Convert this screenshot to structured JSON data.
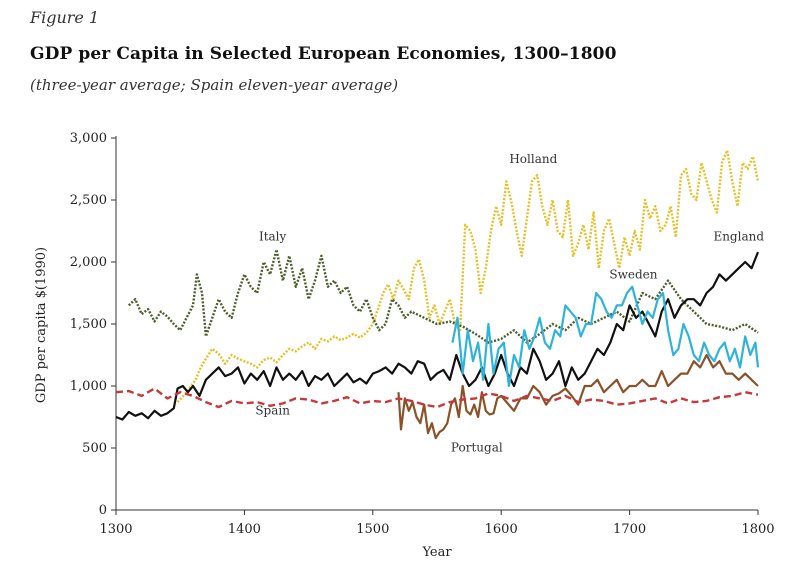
{
  "figure": {
    "label": "Figure 1",
    "title": "GDP per Capita in Selected European Economies, 1300–1800",
    "subtitle": "(three-year average; Spain eleven-year average)"
  },
  "chart_data": {
    "type": "line",
    "title": "GDP per Capita in Selected European Economies, 1300–1800",
    "xlabel": "Year",
    "ylabel": "GDP per capita $(1990)",
    "xlim": [
      1300,
      1800
    ],
    "ylim": [
      0,
      3000
    ],
    "xticks": [
      1300,
      1400,
      1500,
      1600,
      1700,
      1800
    ],
    "yticks": [
      0,
      500,
      1000,
      1500,
      2000,
      2500,
      3000
    ],
    "xtick_labels": [
      "1300",
      "1400",
      "1500",
      "1600",
      "1700",
      "1800"
    ],
    "ytick_labels": [
      "0",
      "500",
      "1,000",
      "1,500",
      "2,000",
      "2,500",
      "3,000"
    ],
    "grid": false,
    "series": [
      {
        "name": "Holland",
        "color": "#e6c02a",
        "style": "dotted",
        "label_pos": [
          1625,
          2800
        ],
        "x": [
          1348,
          1355,
          1362,
          1366,
          1370,
          1375,
          1380,
          1385,
          1390,
          1395,
          1400,
          1405,
          1410,
          1415,
          1420,
          1425,
          1430,
          1435,
          1440,
          1445,
          1450,
          1455,
          1460,
          1465,
          1470,
          1475,
          1480,
          1485,
          1490,
          1495,
          1500,
          1505,
          1508,
          1512,
          1516,
          1520,
          1524,
          1528,
          1532,
          1536,
          1540,
          1544,
          1548,
          1552,
          1556,
          1560,
          1564,
          1568,
          1572,
          1576,
          1580,
          1584,
          1588,
          1592,
          1596,
          1600,
          1604,
          1608,
          1612,
          1616,
          1620,
          1624,
          1628,
          1632,
          1636,
          1640,
          1644,
          1648,
          1652,
          1656,
          1660,
          1664,
          1668,
          1672,
          1676,
          1680,
          1684,
          1688,
          1692,
          1696,
          1700,
          1704,
          1708,
          1712,
          1716,
          1720,
          1724,
          1728,
          1732,
          1736,
          1740,
          1744,
          1748,
          1752,
          1756,
          1760,
          1764,
          1768,
          1772,
          1776,
          1780,
          1784,
          1788,
          1792,
          1796,
          1800
        ],
        "values": [
          870,
          950,
          1050,
          1150,
          1220,
          1300,
          1260,
          1180,
          1250,
          1220,
          1200,
          1180,
          1150,
          1210,
          1230,
          1190,
          1250,
          1300,
          1280,
          1320,
          1350,
          1300,
          1380,
          1360,
          1400,
          1370,
          1390,
          1420,
          1390,
          1430,
          1500,
          1650,
          1750,
          1820,
          1700,
          1850,
          1780,
          1700,
          1950,
          2020,
          1850,
          1550,
          1650,
          1500,
          1600,
          1700,
          1500,
          1450,
          2300,
          2250,
          2100,
          1750,
          1950,
          2250,
          2450,
          2300,
          2650,
          2480,
          2250,
          2050,
          2350,
          2650,
          2700,
          2450,
          2300,
          2500,
          2250,
          2200,
          2500,
          2050,
          2150,
          2300,
          2100,
          2400,
          1950,
          2250,
          2350,
          2150,
          1950,
          2200,
          2050,
          2250,
          2100,
          2500,
          2350,
          2450,
          2250,
          2300,
          2450,
          2200,
          2700,
          2750,
          2550,
          2500,
          2800,
          2650,
          2500,
          2400,
          2800,
          2900,
          2650,
          2450,
          2800,
          2750,
          2850,
          2650
        ]
      },
      {
        "name": "Italy",
        "color": "#4a5e2a",
        "style": "dotted",
        "label_pos": [
          1422,
          2175
        ],
        "x": [
          1310,
          1315,
          1320,
          1325,
          1330,
          1335,
          1340,
          1345,
          1350,
          1355,
          1360,
          1363,
          1367,
          1370,
          1375,
          1380,
          1385,
          1390,
          1395,
          1400,
          1405,
          1410,
          1415,
          1420,
          1425,
          1430,
          1435,
          1440,
          1445,
          1450,
          1455,
          1460,
          1465,
          1470,
          1475,
          1480,
          1485,
          1490,
          1495,
          1500,
          1505,
          1510,
          1515,
          1520,
          1525,
          1530,
          1540,
          1550,
          1560,
          1570,
          1580,
          1590,
          1600,
          1610,
          1620,
          1630,
          1640,
          1650,
          1660,
          1670,
          1680,
          1690,
          1700,
          1710,
          1720,
          1730,
          1740,
          1750,
          1760,
          1770,
          1780,
          1790,
          1800
        ],
        "values": [
          1650,
          1700,
          1580,
          1620,
          1520,
          1600,
          1560,
          1500,
          1450,
          1550,
          1650,
          1900,
          1750,
          1400,
          1550,
          1700,
          1600,
          1550,
          1750,
          1900,
          1800,
          1750,
          2000,
          1900,
          2100,
          1850,
          2050,
          1800,
          1950,
          1700,
          1850,
          2050,
          1800,
          1850,
          1750,
          1800,
          1650,
          1600,
          1700,
          1550,
          1450,
          1500,
          1700,
          1650,
          1550,
          1600,
          1550,
          1500,
          1520,
          1480,
          1420,
          1350,
          1380,
          1450,
          1350,
          1420,
          1500,
          1450,
          1550,
          1500,
          1550,
          1600,
          1520,
          1750,
          1700,
          1850,
          1700,
          1600,
          1500,
          1480,
          1450,
          1500,
          1430
        ]
      },
      {
        "name": "England",
        "color": "#111111",
        "style": "solid",
        "label_pos": [
          1785,
          2175
        ],
        "x": [
          1300,
          1305,
          1310,
          1315,
          1320,
          1325,
          1330,
          1335,
          1340,
          1345,
          1348,
          1352,
          1356,
          1360,
          1365,
          1370,
          1375,
          1380,
          1385,
          1390,
          1395,
          1400,
          1405,
          1410,
          1415,
          1420,
          1425,
          1430,
          1435,
          1440,
          1445,
          1450,
          1455,
          1460,
          1465,
          1470,
          1475,
          1480,
          1485,
          1490,
          1495,
          1500,
          1505,
          1510,
          1515,
          1520,
          1525,
          1530,
          1535,
          1540,
          1545,
          1550,
          1555,
          1560,
          1565,
          1570,
          1575,
          1580,
          1585,
          1590,
          1595,
          1600,
          1605,
          1610,
          1615,
          1620,
          1625,
          1630,
          1635,
          1640,
          1645,
          1650,
          1655,
          1660,
          1665,
          1670,
          1675,
          1680,
          1685,
          1690,
          1695,
          1700,
          1705,
          1710,
          1715,
          1720,
          1725,
          1730,
          1735,
          1740,
          1745,
          1750,
          1755,
          1760,
          1765,
          1770,
          1775,
          1780,
          1785,
          1790,
          1795,
          1800
        ],
        "values": [
          750,
          730,
          790,
          760,
          780,
          740,
          800,
          760,
          780,
          820,
          980,
          1000,
          950,
          1000,
          920,
          1050,
          1100,
          1150,
          1080,
          1100,
          1150,
          1020,
          1100,
          1050,
          1120,
          1000,
          1150,
          1050,
          1100,
          1050,
          1120,
          1000,
          1080,
          1050,
          1100,
          1000,
          1050,
          1100,
          1030,
          1060,
          1020,
          1100,
          1120,
          1150,
          1100,
          1180,
          1150,
          1100,
          1200,
          1180,
          1050,
          1100,
          1130,
          1050,
          1250,
          1100,
          1000,
          1050,
          1150,
          1000,
          1100,
          1250,
          1100,
          1000,
          1150,
          1100,
          1300,
          1200,
          1050,
          1100,
          1200,
          1000,
          1150,
          1050,
          1100,
          1200,
          1300,
          1250,
          1350,
          1500,
          1450,
          1650,
          1550,
          1600,
          1500,
          1400,
          1600,
          1700,
          1550,
          1650,
          1700,
          1700,
          1650,
          1750,
          1800,
          1900,
          1850,
          1900,
          1950,
          2000,
          1950,
          2080
        ]
      },
      {
        "name": "Sweden",
        "color": "#2fb3d9",
        "style": "solid",
        "label_pos": [
          1703,
          1865
        ],
        "x": [
          1562,
          1566,
          1570,
          1574,
          1578,
          1582,
          1586,
          1590,
          1594,
          1598,
          1602,
          1606,
          1610,
          1614,
          1618,
          1622,
          1626,
          1630,
          1634,
          1638,
          1642,
          1646,
          1650,
          1654,
          1658,
          1662,
          1666,
          1670,
          1674,
          1678,
          1682,
          1686,
          1690,
          1694,
          1698,
          1702,
          1706,
          1710,
          1714,
          1718,
          1722,
          1726,
          1730,
          1734,
          1738,
          1742,
          1746,
          1750,
          1754,
          1758,
          1762,
          1766,
          1770,
          1774,
          1778,
          1782,
          1786,
          1790,
          1794,
          1798,
          1800
        ],
        "values": [
          1350,
          1550,
          1100,
          1450,
          1200,
          1350,
          1050,
          1500,
          1100,
          1300,
          1350,
          1000,
          1250,
          1150,
          1450,
          1300,
          1400,
          1550,
          1350,
          1300,
          1450,
          1400,
          1650,
          1600,
          1550,
          1400,
          1500,
          1500,
          1750,
          1700,
          1600,
          1550,
          1650,
          1650,
          1750,
          1800,
          1650,
          1500,
          1600,
          1550,
          1700,
          1750,
          1450,
          1250,
          1300,
          1500,
          1400,
          1250,
          1200,
          1350,
          1250,
          1200,
          1300,
          1350,
          1200,
          1300,
          1150,
          1400,
          1250,
          1350,
          1150
        ]
      },
      {
        "name": "Portugal",
        "color": "#8a5228",
        "style": "solid",
        "label_pos": [
          1581,
          470
        ],
        "x": [
          1520,
          1522,
          1525,
          1528,
          1531,
          1534,
          1537,
          1540,
          1543,
          1546,
          1549,
          1552,
          1555,
          1558,
          1561,
          1564,
          1567,
          1570,
          1573,
          1576,
          1579,
          1582,
          1585,
          1588,
          1591,
          1594,
          1597,
          1600,
          1605,
          1610,
          1615,
          1620,
          1625,
          1630,
          1635,
          1640,
          1645,
          1650,
          1655,
          1660,
          1665,
          1670,
          1675,
          1680,
          1685,
          1690,
          1695,
          1700,
          1705,
          1710,
          1715,
          1720,
          1725,
          1730,
          1735,
          1740,
          1745,
          1750,
          1755,
          1760,
          1765,
          1770,
          1775,
          1780,
          1785,
          1790,
          1795,
          1800
        ],
        "values": [
          950,
          650,
          900,
          800,
          870,
          750,
          700,
          850,
          620,
          700,
          580,
          630,
          650,
          700,
          850,
          900,
          750,
          1000,
          800,
          770,
          850,
          750,
          950,
          800,
          770,
          780,
          900,
          920,
          860,
          800,
          900,
          900,
          1000,
          950,
          850,
          920,
          940,
          980,
          920,
          850,
          1000,
          1000,
          1050,
          950,
          1000,
          1050,
          950,
          1000,
          1000,
          1050,
          1000,
          1000,
          1120,
          1000,
          1050,
          1100,
          1100,
          1200,
          1150,
          1250,
          1150,
          1200,
          1100,
          1100,
          1050,
          1100,
          1050,
          1000
        ]
      },
      {
        "name": "Spain",
        "color": "#c8373a",
        "style": "dashed",
        "label_pos": [
          1422,
          770
        ],
        "x": [
          1300,
          1310,
          1320,
          1330,
          1340,
          1350,
          1360,
          1370,
          1380,
          1390,
          1400,
          1410,
          1420,
          1430,
          1440,
          1450,
          1460,
          1470,
          1480,
          1490,
          1500,
          1510,
          1520,
          1530,
          1540,
          1550,
          1560,
          1570,
          1580,
          1590,
          1600,
          1610,
          1620,
          1630,
          1640,
          1650,
          1660,
          1670,
          1680,
          1690,
          1700,
          1710,
          1720,
          1730,
          1740,
          1750,
          1760,
          1770,
          1780,
          1790,
          1800
        ],
        "values": [
          950,
          960,
          920,
          980,
          900,
          950,
          920,
          870,
          830,
          880,
          860,
          870,
          840,
          860,
          900,
          890,
          860,
          880,
          910,
          860,
          880,
          870,
          900,
          880,
          850,
          830,
          870,
          890,
          900,
          940,
          920,
          880,
          920,
          900,
          880,
          920,
          870,
          890,
          880,
          850,
          860,
          880,
          900,
          860,
          900,
          870,
          880,
          910,
          920,
          950,
          930
        ]
      }
    ]
  }
}
